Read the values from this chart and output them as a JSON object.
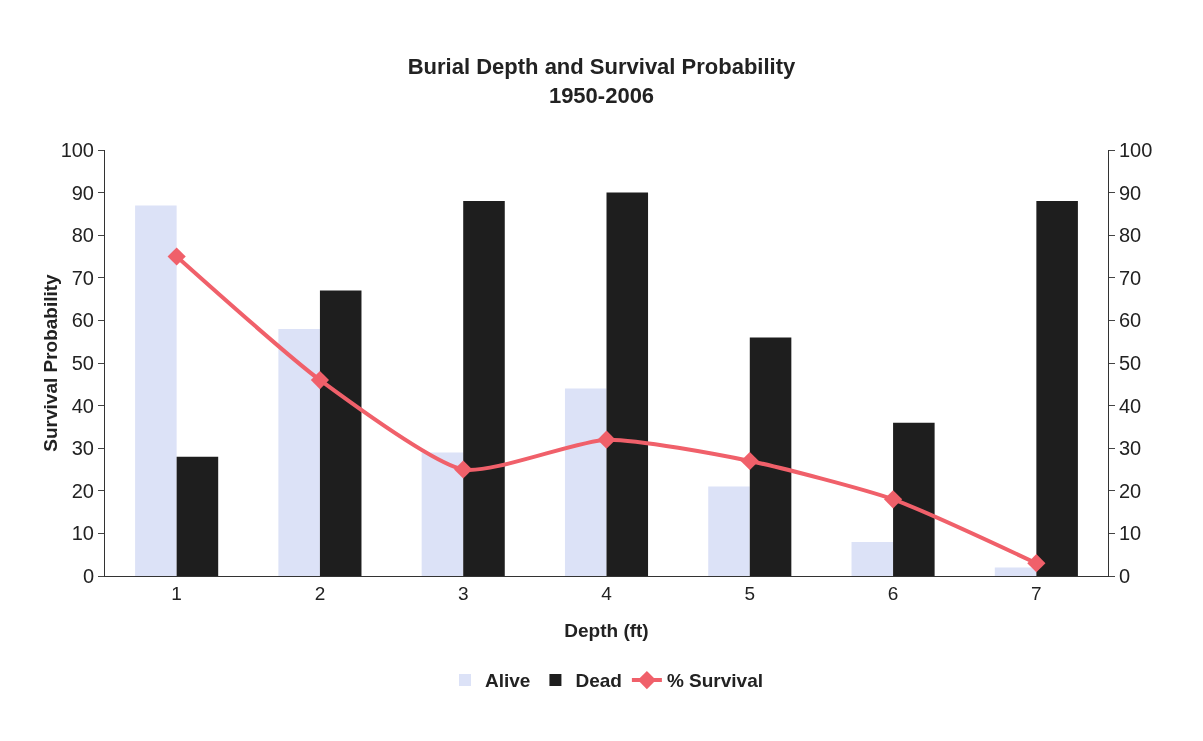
{
  "chart_data": {
    "type": "bar",
    "title": "Burial Depth and Survival Probability\n1950-2006",
    "xlabel": "Depth (ft)",
    "ylabel": "Survival Probability",
    "categories": [
      "1",
      "2",
      "3",
      "4",
      "5",
      "6",
      "7"
    ],
    "series": [
      {
        "name": "Alive",
        "color": "#dce2f7",
        "values": [
          87,
          58,
          29,
          44,
          21,
          8,
          2
        ]
      },
      {
        "name": "Dead",
        "color": "#1e1e1e",
        "values": [
          28,
          67,
          88,
          90,
          56,
          36,
          88
        ]
      },
      {
        "name": "% Survival",
        "type": "line",
        "axis": "y2",
        "color": "#f0606a",
        "marker": "diamond",
        "values": [
          75,
          46,
          25,
          32,
          27,
          18,
          3
        ]
      }
    ],
    "ylim": [
      0,
      100
    ],
    "yticks": [
      0,
      10,
      20,
      30,
      40,
      50,
      60,
      70,
      80,
      90,
      100
    ],
    "y2lim": [
      0,
      100
    ],
    "y2ticks": [
      0,
      10,
      20,
      30,
      40,
      50,
      60,
      70,
      80,
      90,
      100
    ],
    "grid": false,
    "legend": "bottom"
  }
}
